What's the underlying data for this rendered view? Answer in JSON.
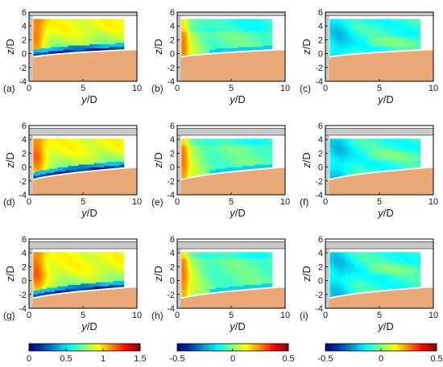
{
  "chart_data": {
    "type": "heatmap",
    "layout": "3x3 grid of contour panels with three shared colorbars below",
    "axes": {
      "xlabel_pre": "y",
      "xlabel_post": "/D",
      "ylabel_pre": "z",
      "ylabel_post": "/D",
      "xlim": [
        0,
        10
      ],
      "ylim": [
        -4,
        6
      ],
      "xticks": [
        0,
        5,
        10
      ],
      "yticks": [
        6,
        4,
        2,
        0,
        -2,
        -4
      ]
    },
    "panels": [
      {
        "label": "(a)",
        "row": 0,
        "col": 0,
        "field": "a",
        "shelf_z": [
          5.5,
          6.0
        ],
        "bed_z0": -0.8,
        "bed_z_end": 0.5
      },
      {
        "label": "(b)",
        "row": 0,
        "col": 1,
        "field": "b",
        "shelf_z": [
          5.5,
          6.0
        ],
        "bed_z0": -0.8,
        "bed_z_end": 0.5
      },
      {
        "label": "(c)",
        "row": 0,
        "col": 2,
        "field": "c",
        "shelf_z": [
          5.5,
          6.0
        ],
        "bed_z0": -0.8,
        "bed_z_end": 0.5
      },
      {
        "label": "(d)",
        "row": 1,
        "col": 0,
        "field": "a",
        "shelf_z": [
          4.6,
          5.6
        ],
        "bed_z0": -2.3,
        "bed_z_end": -0.1
      },
      {
        "label": "(e)",
        "row": 1,
        "col": 1,
        "field": "b",
        "shelf_z": [
          4.6,
          5.6
        ],
        "bed_z0": -2.3,
        "bed_z_end": -0.1
      },
      {
        "label": "(f)",
        "row": 1,
        "col": 2,
        "field": "c",
        "shelf_z": [
          4.6,
          5.6
        ],
        "bed_z0": -2.3,
        "bed_z_end": -0.1
      },
      {
        "label": "(g)",
        "row": 2,
        "col": 0,
        "field": "a",
        "shelf_z": [
          4.6,
          5.6
        ],
        "bed_z0": -3.0,
        "bed_z_end": -1.0
      },
      {
        "label": "(h)",
        "row": 2,
        "col": 1,
        "field": "b",
        "shelf_z": [
          4.6,
          5.6
        ],
        "bed_z0": -3.0,
        "bed_z_end": -1.0
      },
      {
        "label": "(i)",
        "row": 2,
        "col": 2,
        "field": "c",
        "shelf_z": [
          4.6,
          5.6
        ],
        "bed_z0": -3.0,
        "bed_z_end": -1.0
      }
    ],
    "colorbars": [
      {
        "col": 0,
        "range": [
          0,
          1.5
        ],
        "tick_values": [
          0,
          0.5,
          1,
          1.5
        ],
        "tick_labels": [
          "0",
          "0.5",
          "1",
          "1.5"
        ]
      },
      {
        "col": 1,
        "range": [
          -0.5,
          0.5
        ],
        "tick_values": [
          -0.5,
          0,
          0.5
        ],
        "tick_labels": [
          "-0.5",
          "0",
          "0.5"
        ]
      },
      {
        "col": 2,
        "range": [
          -0.5,
          0.5
        ],
        "tick_values": [
          -0.5,
          0,
          0.5
        ],
        "tick_labels": [
          "-0.5",
          "0",
          "0.5"
        ]
      }
    ],
    "measurement_window_y": [
      0.4,
      8.8
    ],
    "colormap": "jet",
    "colors": {
      "bed": "#eba877",
      "shelf": "#c8c8c8",
      "frame": "#000000"
    }
  }
}
